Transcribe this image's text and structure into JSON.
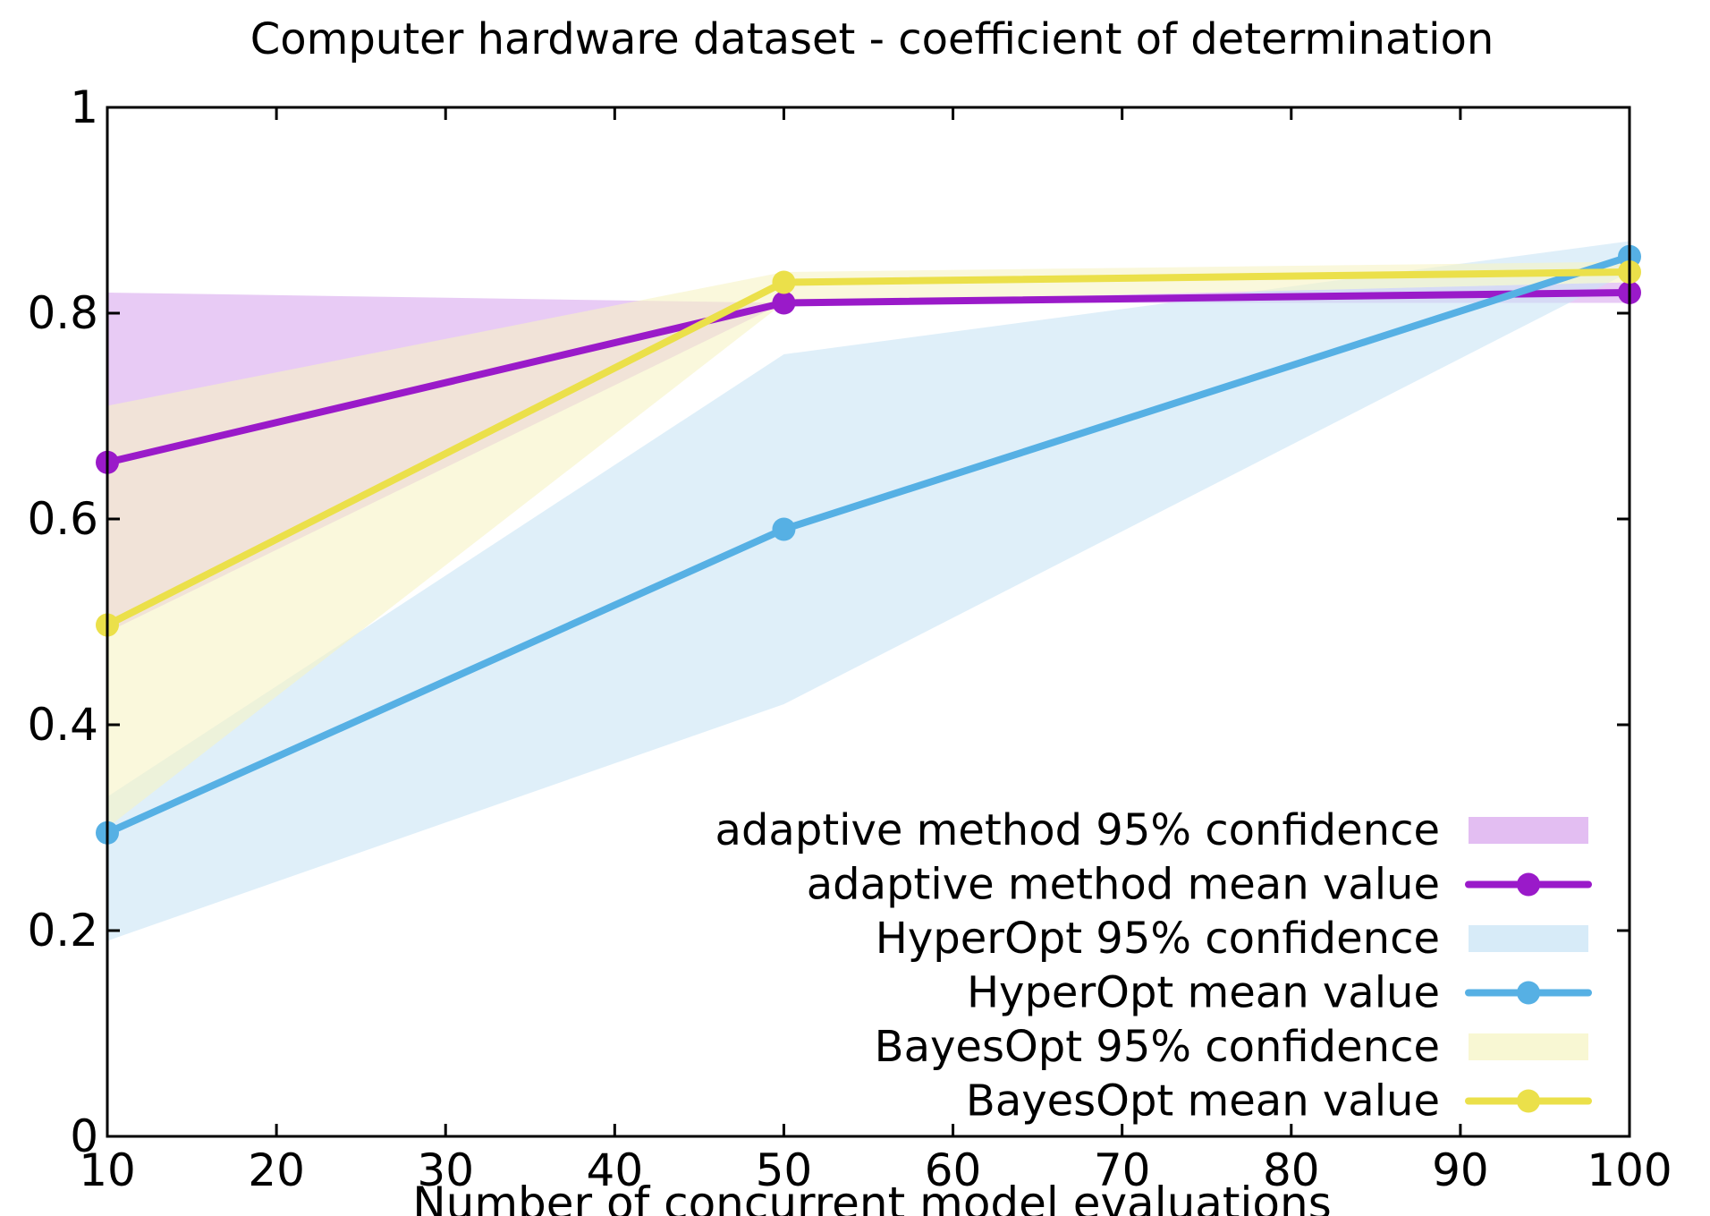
{
  "chart_data": {
    "type": "line",
    "title": "Computer hardware dataset - coefficient of determination",
    "xlabel": "Number of concurrent model evaluations",
    "ylabel": "",
    "xlim": [
      10,
      100
    ],
    "ylim": [
      0,
      1
    ],
    "x_ticks": [
      "10",
      "20",
      "30",
      "40",
      "50",
      "60",
      "70",
      "80",
      "90",
      "100"
    ],
    "y_ticks": [
      "0",
      "0.2",
      "0.4",
      "0.6",
      "0.8",
      "1"
    ],
    "grid": false,
    "legend_position": "bottom-right",
    "x": [
      10,
      50,
      100
    ],
    "bands": [
      {
        "name": "adaptive method 95% confidence",
        "color": "#d9a8ee",
        "lower": [
          0.49,
          0.81,
          0.81
        ],
        "upper": [
          0.82,
          0.81,
          0.83
        ]
      },
      {
        "name": "HyperOpt 95% confidence",
        "color": "#c9e4f5",
        "lower": [
          0.19,
          0.42,
          0.84
        ],
        "upper": [
          0.33,
          0.76,
          0.87
        ]
      },
      {
        "name": "BayesOpt 95% confidence",
        "color": "#f6f4c4",
        "lower": [
          0.3,
          0.81,
          0.83
        ],
        "upper": [
          0.71,
          0.84,
          0.85
        ]
      }
    ],
    "series": [
      {
        "name": "adaptive method mean value",
        "color": "#9a1ac9",
        "values": [
          0.655,
          0.81,
          0.82
        ]
      },
      {
        "name": "HyperOpt mean value",
        "color": "#56b0e4",
        "values": [
          0.295,
          0.59,
          0.855
        ]
      },
      {
        "name": "BayesOpt mean value",
        "color": "#ebe04a",
        "values": [
          0.497,
          0.83,
          0.84
        ]
      }
    ],
    "legend": [
      {
        "label": "adaptive method 95% confidence",
        "kind": "band",
        "color": "#d9a8ee"
      },
      {
        "label": "adaptive method mean value",
        "kind": "line",
        "color": "#9a1ac9"
      },
      {
        "label": "HyperOpt 95% confidence",
        "kind": "band",
        "color": "#c9e4f5"
      },
      {
        "label": "HyperOpt mean value",
        "kind": "line",
        "color": "#56b0e4"
      },
      {
        "label": "BayesOpt 95% confidence",
        "kind": "band",
        "color": "#f6f4c4"
      },
      {
        "label": "BayesOpt mean value",
        "kind": "line",
        "color": "#ebe04a"
      }
    ]
  }
}
